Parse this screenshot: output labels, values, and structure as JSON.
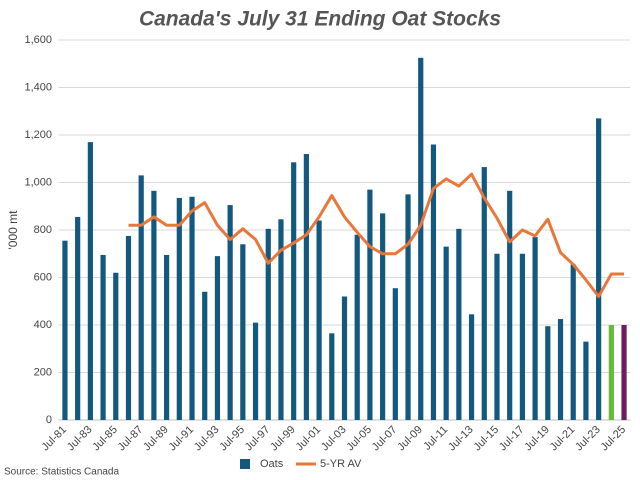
{
  "chart_data": {
    "type": "bar-line",
    "title": "Canada's July 31 Ending Oat Stocks",
    "y_label": "'000 mt",
    "source": "Source: Statistics Canada",
    "categories": [
      "Jul-81",
      null,
      "Jul-83",
      null,
      "Jul-85",
      null,
      "Jul-87",
      null,
      "Jul-89",
      null,
      "Jul-91",
      null,
      "Jul-93",
      null,
      "Jul-95",
      null,
      "Jul-97",
      null,
      "Jul-99",
      null,
      "Jul-01",
      null,
      "Jul-03",
      null,
      "Jul-05",
      null,
      "Jul-07",
      null,
      "Jul-09",
      null,
      "Jul-11",
      null,
      "Jul-13",
      null,
      "Jul-15",
      null,
      "Jul-17",
      null,
      "Jul-19",
      null,
      "Jul-21",
      null,
      "Jul-23",
      null,
      "Jul-25"
    ],
    "series": [
      {
        "name": "Oats",
        "type": "bar",
        "color": "#13597f",
        "colors": [
          "#13597f",
          "#13597f",
          "#13597f",
          "#13597f",
          "#13597f",
          "#13597f",
          "#13597f",
          "#13597f",
          "#13597f",
          "#13597f",
          "#13597f",
          "#13597f",
          "#13597f",
          "#13597f",
          "#13597f",
          "#13597f",
          "#13597f",
          "#13597f",
          "#13597f",
          "#13597f",
          "#13597f",
          "#13597f",
          "#13597f",
          "#13597f",
          "#13597f",
          "#13597f",
          "#13597f",
          "#13597f",
          "#13597f",
          "#13597f",
          "#13597f",
          "#13597f",
          "#13597f",
          "#13597f",
          "#13597f",
          "#13597f",
          "#13597f",
          "#13597f",
          "#13597f",
          "#13597f",
          "#13597f",
          "#13597f",
          "#13597f",
          "#66bb3a",
          "#6a1f63"
        ],
        "values": [
          755,
          855,
          1170,
          695,
          620,
          775,
          1030,
          965,
          695,
          935,
          940,
          540,
          690,
          905,
          740,
          410,
          805,
          845,
          1085,
          1120,
          840,
          365,
          520,
          780,
          970,
          870,
          555,
          950,
          1525,
          1160,
          730,
          805,
          445,
          1065,
          700,
          965,
          700,
          770,
          395,
          425,
          655,
          330,
          1270,
          400,
          400
        ]
      },
      {
        "name": "5-YR AV",
        "type": "line",
        "color": "#e8773a",
        "values": [
          null,
          null,
          null,
          null,
          null,
          820,
          820,
          855,
          820,
          820,
          880,
          915,
          820,
          760,
          805,
          760,
          660,
          715,
          745,
          780,
          855,
          945,
          855,
          790,
          730,
          700,
          700,
          740,
          820,
          975,
          1015,
          985,
          1035,
          935,
          850,
          750,
          800,
          775,
          845,
          705,
          655,
          590,
          520,
          615,
          615
        ]
      }
    ],
    "ylim": [
      0,
      1600
    ],
    "yticks": [
      0,
      200,
      400,
      600,
      800,
      {
        "value": 1000,
        "label": "1,000"
      },
      {
        "value": 1200,
        "label": "1,200"
      },
      {
        "value": 1400,
        "label": "1,400"
      },
      {
        "value": 1600,
        "label": "1,600"
      }
    ],
    "grid": true
  }
}
